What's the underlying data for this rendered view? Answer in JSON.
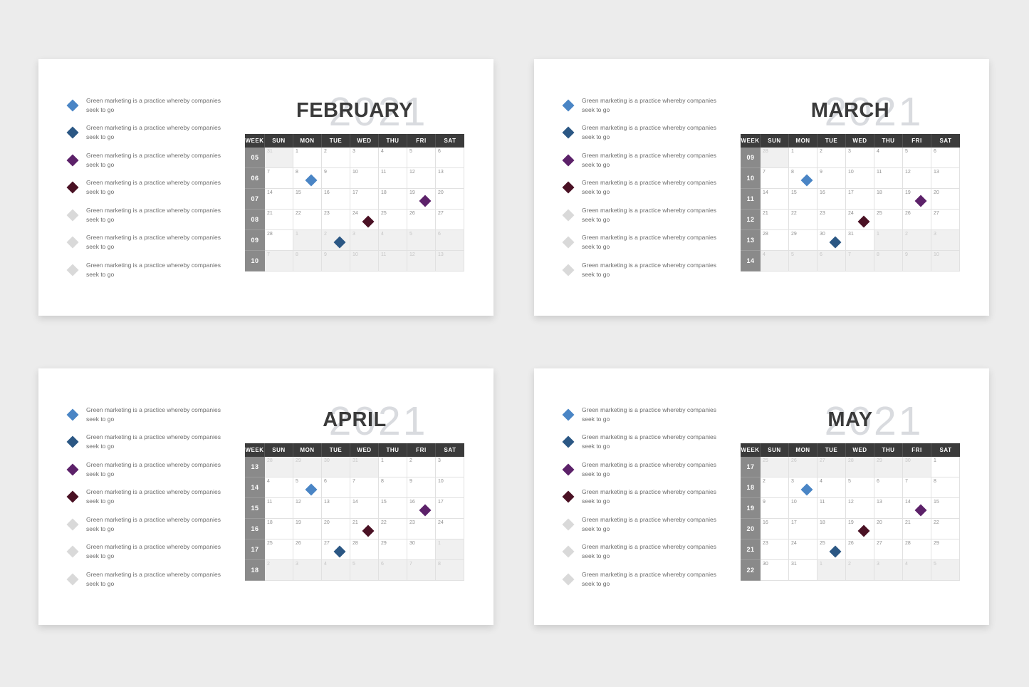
{
  "page": {
    "background": "#ececec"
  },
  "colors": {
    "card_bg": "#ffffff",
    "header_bg": "#3b3b3b",
    "week_bg": "#8a8a8a",
    "out_cell_bg": "#f0f0f0",
    "year_watermark": "#d9dbdf",
    "month_text": "#3a3a3a",
    "markers": {
      "blue": "#4a85c5",
      "navy": "#2b5784",
      "purple": "#5c2169",
      "maroon": "#4a1124",
      "gray": "#d9d9d9"
    }
  },
  "legend": {
    "line1": "Green marketing is a practice whereby companies",
    "line2": "seek to go",
    "swatches": [
      "blue",
      "navy",
      "purple",
      "maroon",
      "gray",
      "gray",
      "gray"
    ]
  },
  "day_headers": [
    "WEEK",
    "SUN",
    "MON",
    "TUE",
    "WED",
    "THU",
    "FRI",
    "SAT"
  ],
  "calendars": [
    {
      "month": "FEBRUARY",
      "year": "2021",
      "weeks": [
        {
          "num": "05",
          "days": [
            {
              "d": "31",
              "out": true
            },
            {
              "d": "1"
            },
            {
              "d": "2"
            },
            {
              "d": "3"
            },
            {
              "d": "4"
            },
            {
              "d": "5"
            },
            {
              "d": "6"
            }
          ]
        },
        {
          "num": "06",
          "days": [
            {
              "d": "7"
            },
            {
              "d": "8",
              "m": "blue"
            },
            {
              "d": "9"
            },
            {
              "d": "10"
            },
            {
              "d": "11"
            },
            {
              "d": "12"
            },
            {
              "d": "13"
            }
          ]
        },
        {
          "num": "07",
          "days": [
            {
              "d": "14"
            },
            {
              "d": "15"
            },
            {
              "d": "16"
            },
            {
              "d": "17"
            },
            {
              "d": "18"
            },
            {
              "d": "19",
              "m": "purple"
            },
            {
              "d": "20"
            }
          ]
        },
        {
          "num": "08",
          "days": [
            {
              "d": "21"
            },
            {
              "d": "22"
            },
            {
              "d": "23"
            },
            {
              "d": "24",
              "m": "maroon"
            },
            {
              "d": "25"
            },
            {
              "d": "26"
            },
            {
              "d": "27"
            }
          ]
        },
        {
          "num": "09",
          "days": [
            {
              "d": "28"
            },
            {
              "d": "1",
              "out": true
            },
            {
              "d": "2",
              "out": true,
              "m": "navy"
            },
            {
              "d": "3",
              "out": true
            },
            {
              "d": "4",
              "out": true
            },
            {
              "d": "5",
              "out": true
            },
            {
              "d": "6",
              "out": true
            }
          ]
        },
        {
          "num": "10",
          "days": [
            {
              "d": "7",
              "out": true
            },
            {
              "d": "8",
              "out": true
            },
            {
              "d": "9",
              "out": true
            },
            {
              "d": "10",
              "out": true
            },
            {
              "d": "11",
              "out": true
            },
            {
              "d": "12",
              "out": true
            },
            {
              "d": "13",
              "out": true
            }
          ]
        }
      ]
    },
    {
      "month": "MARCH",
      "year": "2021",
      "weeks": [
        {
          "num": "09",
          "days": [
            {
              "d": "28",
              "out": true
            },
            {
              "d": "1"
            },
            {
              "d": "2"
            },
            {
              "d": "3"
            },
            {
              "d": "4"
            },
            {
              "d": "5"
            },
            {
              "d": "6"
            }
          ]
        },
        {
          "num": "10",
          "days": [
            {
              "d": "7"
            },
            {
              "d": "8",
              "m": "blue"
            },
            {
              "d": "9"
            },
            {
              "d": "10"
            },
            {
              "d": "11"
            },
            {
              "d": "12"
            },
            {
              "d": "13"
            }
          ]
        },
        {
          "num": "11",
          "days": [
            {
              "d": "14"
            },
            {
              "d": "15"
            },
            {
              "d": "16"
            },
            {
              "d": "17"
            },
            {
              "d": "18"
            },
            {
              "d": "19",
              "m": "purple"
            },
            {
              "d": "20"
            }
          ]
        },
        {
          "num": "12",
          "days": [
            {
              "d": "21"
            },
            {
              "d": "22"
            },
            {
              "d": "23"
            },
            {
              "d": "24",
              "m": "maroon"
            },
            {
              "d": "25"
            },
            {
              "d": "26"
            },
            {
              "d": "27"
            }
          ]
        },
        {
          "num": "13",
          "days": [
            {
              "d": "28"
            },
            {
              "d": "29"
            },
            {
              "d": "30",
              "m": "navy"
            },
            {
              "d": "31"
            },
            {
              "d": "1",
              "out": true
            },
            {
              "d": "2",
              "out": true
            },
            {
              "d": "3",
              "out": true
            }
          ]
        },
        {
          "num": "14",
          "days": [
            {
              "d": "4",
              "out": true
            },
            {
              "d": "5",
              "out": true
            },
            {
              "d": "6",
              "out": true
            },
            {
              "d": "7",
              "out": true
            },
            {
              "d": "8",
              "out": true
            },
            {
              "d": "9",
              "out": true
            },
            {
              "d": "10",
              "out": true
            }
          ]
        }
      ]
    },
    {
      "month": "APRIL",
      "year": "2021",
      "weeks": [
        {
          "num": "13",
          "days": [
            {
              "d": "28",
              "out": true
            },
            {
              "d": "29",
              "out": true
            },
            {
              "d": "30",
              "out": true
            },
            {
              "d": "31",
              "out": true
            },
            {
              "d": "1"
            },
            {
              "d": "2"
            },
            {
              "d": "3"
            }
          ]
        },
        {
          "num": "14",
          "days": [
            {
              "d": "4"
            },
            {
              "d": "5",
              "m": "blue"
            },
            {
              "d": "6"
            },
            {
              "d": "7"
            },
            {
              "d": "8"
            },
            {
              "d": "9"
            },
            {
              "d": "10"
            }
          ]
        },
        {
          "num": "15",
          "days": [
            {
              "d": "11"
            },
            {
              "d": "12"
            },
            {
              "d": "13"
            },
            {
              "d": "14"
            },
            {
              "d": "15"
            },
            {
              "d": "16",
              "m": "purple"
            },
            {
              "d": "17"
            }
          ]
        },
        {
          "num": "16",
          "days": [
            {
              "d": "18"
            },
            {
              "d": "19"
            },
            {
              "d": "20"
            },
            {
              "d": "21",
              "m": "maroon"
            },
            {
              "d": "22"
            },
            {
              "d": "23"
            },
            {
              "d": "24"
            }
          ]
        },
        {
          "num": "17",
          "days": [
            {
              "d": "25"
            },
            {
              "d": "26"
            },
            {
              "d": "27",
              "m": "navy"
            },
            {
              "d": "28"
            },
            {
              "d": "29"
            },
            {
              "d": "30"
            },
            {
              "d": "1",
              "out": true
            }
          ]
        },
        {
          "num": "18",
          "days": [
            {
              "d": "2",
              "out": true
            },
            {
              "d": "3",
              "out": true
            },
            {
              "d": "4",
              "out": true
            },
            {
              "d": "5",
              "out": true
            },
            {
              "d": "6",
              "out": true
            },
            {
              "d": "7",
              "out": true
            },
            {
              "d": "8",
              "out": true
            }
          ]
        }
      ]
    },
    {
      "month": "MAY",
      "year": "2021",
      "weeks": [
        {
          "num": "17",
          "days": [
            {
              "d": "25",
              "out": true
            },
            {
              "d": "26",
              "out": true
            },
            {
              "d": "27",
              "out": true
            },
            {
              "d": "28",
              "out": true
            },
            {
              "d": "29",
              "out": true
            },
            {
              "d": "30",
              "out": true
            },
            {
              "d": "1"
            }
          ]
        },
        {
          "num": "18",
          "days": [
            {
              "d": "2"
            },
            {
              "d": "3",
              "m": "blue"
            },
            {
              "d": "4"
            },
            {
              "d": "5"
            },
            {
              "d": "6"
            },
            {
              "d": "7"
            },
            {
              "d": "8"
            }
          ]
        },
        {
          "num": "19",
          "days": [
            {
              "d": "9"
            },
            {
              "d": "10"
            },
            {
              "d": "11"
            },
            {
              "d": "12"
            },
            {
              "d": "13"
            },
            {
              "d": "14",
              "m": "purple"
            },
            {
              "d": "15"
            }
          ]
        },
        {
          "num": "20",
          "days": [
            {
              "d": "16"
            },
            {
              "d": "17"
            },
            {
              "d": "18"
            },
            {
              "d": "19",
              "m": "maroon"
            },
            {
              "d": "20"
            },
            {
              "d": "21"
            },
            {
              "d": "22"
            }
          ]
        },
        {
          "num": "21",
          "days": [
            {
              "d": "23"
            },
            {
              "d": "24"
            },
            {
              "d": "25",
              "m": "navy"
            },
            {
              "d": "26"
            },
            {
              "d": "27"
            },
            {
              "d": "28"
            },
            {
              "d": "29"
            }
          ]
        },
        {
          "num": "22",
          "days": [
            {
              "d": "30"
            },
            {
              "d": "31"
            },
            {
              "d": "1",
              "out": true
            },
            {
              "d": "2",
              "out": true
            },
            {
              "d": "3",
              "out": true
            },
            {
              "d": "4",
              "out": true
            },
            {
              "d": "5",
              "out": true
            }
          ]
        }
      ]
    }
  ]
}
